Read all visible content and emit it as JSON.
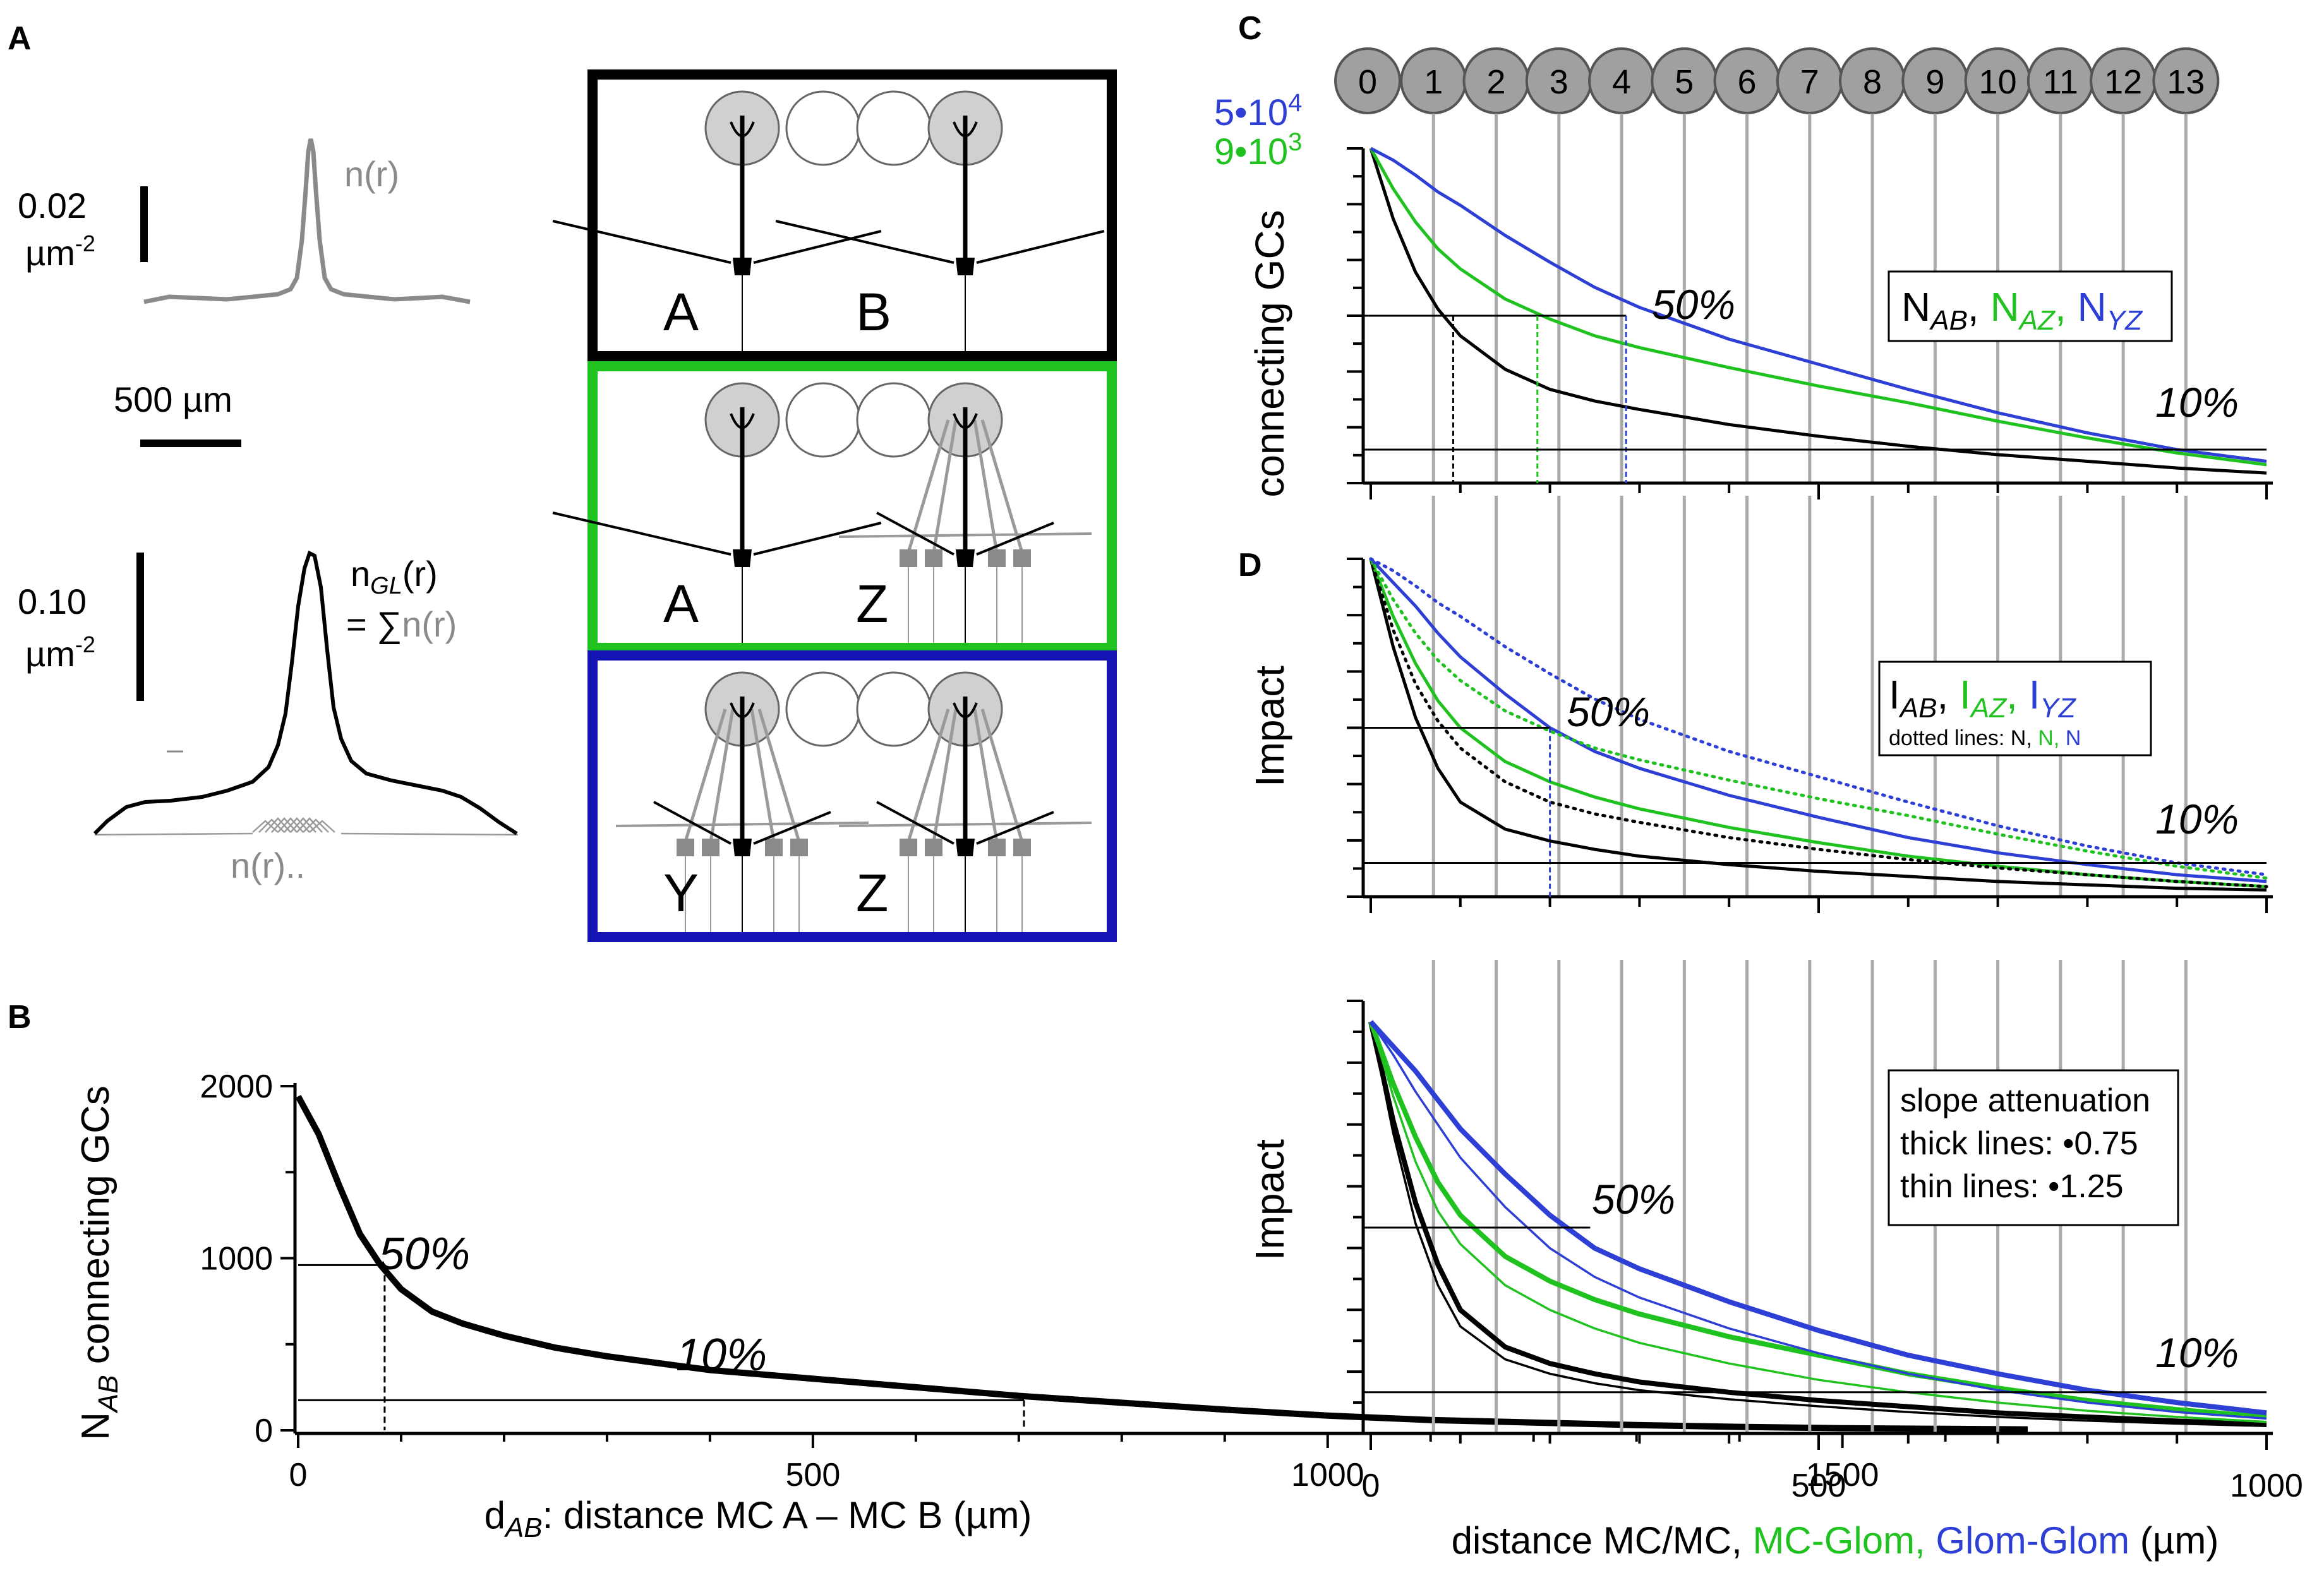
{
  "panel_labels": {
    "A": "A",
    "B": "B",
    "C": "C",
    "D": "D"
  },
  "colors": {
    "black": "#000000",
    "green": "#1fc21f",
    "blue": "#2e3fd6",
    "gray": "#8a8a8a",
    "grid": "#aaaaaa"
  },
  "panelA": {
    "top_scale_value": "0.02",
    "top_scale_unit": "µm",
    "top_scale_exp": "-2",
    "top_curve_label": "n(r)",
    "length_scale": "500 µm",
    "bottom_scale_value": "0.10",
    "bottom_scale_unit": "µm",
    "bottom_scale_exp": "-2",
    "ngl_n": "n",
    "ngl_sub": "GL",
    "ngl_r": "(r)",
    "ngl_eq": "= ∑",
    "ngl_sum": "n(r)",
    "bottom_curve_label": "n(r)..",
    "schematic": [
      {
        "left_label": "A",
        "right_label": "B",
        "frame_color": "#000000"
      },
      {
        "left_label": "A",
        "right_label": "Z",
        "frame_color": "#1fc21f"
      },
      {
        "left_label": "Y",
        "right_label": "Z",
        "frame_color": "#1414b4"
      }
    ]
  },
  "chart_data": [
    {
      "id": "B",
      "type": "line",
      "title": "",
      "xlabel_prefix": "d",
      "xlabel_sub": "AB",
      "xlabel_rest": ": distance MC A – MC B (µm)",
      "ylabel_prefix": "N",
      "ylabel_sub": "AB",
      "ylabel_rest": " connecting GCs",
      "xlim": [
        0,
        1680
      ],
      "ylim": [
        0,
        2000
      ],
      "xticks": [
        0,
        500,
        1000,
        1500
      ],
      "yticks": [
        0,
        1000,
        2000
      ],
      "x": [
        0,
        20,
        40,
        60,
        80,
        100,
        130,
        160,
        200,
        250,
        300,
        400,
        500,
        600,
        700,
        800,
        900,
        1000,
        1100,
        1200,
        1300,
        1400,
        1500,
        1600,
        1680
      ],
      "series": [
        {
          "name": "N_AB",
          "color": "#000000",
          "values": [
            1940,
            1720,
            1420,
            1140,
            960,
            820,
            690,
            620,
            550,
            480,
            430,
            350,
            300,
            250,
            200,
            160,
            120,
            85,
            60,
            45,
            30,
            20,
            12,
            8,
            5
          ]
        }
      ],
      "ref_50": {
        "y": 960,
        "x": 84
      },
      "ref_10": {
        "y": 175,
        "x": 705
      },
      "annotations": [
        "50%",
        "10%"
      ]
    },
    {
      "id": "C",
      "type": "line",
      "ylabel": "connecting GCs",
      "xlim": [
        0,
        1000
      ],
      "ylim": [
        0,
        1
      ],
      "x": [
        0,
        25,
        50,
        75,
        100,
        150,
        200,
        250,
        300,
        400,
        500,
        600,
        700,
        800,
        900,
        1000
      ],
      "series": [
        {
          "name": "N_AB",
          "color": "#000000",
          "values": [
            1.0,
            0.79,
            0.63,
            0.52,
            0.44,
            0.34,
            0.28,
            0.245,
            0.22,
            0.175,
            0.14,
            0.11,
            0.085,
            0.065,
            0.045,
            0.03
          ]
        },
        {
          "name": "N_AZ",
          "color": "#1fc21f",
          "values": [
            1.0,
            0.88,
            0.78,
            0.7,
            0.64,
            0.55,
            0.49,
            0.44,
            0.405,
            0.345,
            0.29,
            0.24,
            0.185,
            0.135,
            0.09,
            0.055
          ]
        },
        {
          "name": "N_YZ",
          "color": "#2e3fd6",
          "values": [
            1.0,
            0.965,
            0.92,
            0.87,
            0.83,
            0.74,
            0.66,
            0.585,
            0.525,
            0.43,
            0.355,
            0.28,
            0.21,
            0.15,
            0.1,
            0.065
          ]
        }
      ],
      "ref_50": {
        "y": 0.5,
        "x_black": 92,
        "x_green": 186,
        "x_blue": 285
      },
      "ref_10": {
        "y": 0.1
      },
      "scale_labels": [
        {
          "text": "5•10",
          "exp": "4",
          "color": "#2e3fd6"
        },
        {
          "text": "9•10",
          "exp": "3",
          "color": "#1fc21f"
        }
      ],
      "annotations": [
        "50%",
        "10%"
      ],
      "legend": [
        {
          "main": "N",
          "sub": "AB",
          "sep": ",",
          "color": "#000000"
        },
        {
          "main": "N",
          "sub": "AZ",
          "sep": ",",
          "color": "#1fc21f"
        },
        {
          "main": "N",
          "sub": "YZ",
          "sep": "",
          "color": "#2e3fd6"
        }
      ],
      "glomerulus_indices": [
        "0",
        "1",
        "2",
        "3",
        "4",
        "5",
        "6",
        "7",
        "8",
        "9",
        "10",
        "11",
        "12",
        "13"
      ],
      "glomerulus_x": [
        0,
        70,
        140,
        210,
        280,
        350,
        420,
        490,
        560,
        630,
        700,
        770,
        840,
        910
      ]
    },
    {
      "id": "D",
      "type": "line",
      "ylabel": "Impact",
      "xlim": [
        0,
        1000
      ],
      "ylim": [
        0,
        1
      ],
      "x": [
        0,
        25,
        50,
        75,
        100,
        150,
        200,
        250,
        300,
        400,
        500,
        600,
        700,
        800,
        900,
        1000
      ],
      "series": [
        {
          "name": "I_AB",
          "color": "#000000",
          "style": "solid",
          "values": [
            1.0,
            0.74,
            0.53,
            0.38,
            0.28,
            0.2,
            0.165,
            0.14,
            0.12,
            0.095,
            0.075,
            0.06,
            0.045,
            0.035,
            0.025,
            0.02
          ]
        },
        {
          "name": "I_AZ",
          "color": "#1fc21f",
          "style": "solid",
          "values": [
            1.0,
            0.83,
            0.69,
            0.58,
            0.5,
            0.4,
            0.34,
            0.295,
            0.26,
            0.205,
            0.16,
            0.12,
            0.09,
            0.065,
            0.045,
            0.03
          ]
        },
        {
          "name": "I_YZ",
          "color": "#2e3fd6",
          "style": "solid",
          "values": [
            1.0,
            0.93,
            0.86,
            0.78,
            0.71,
            0.6,
            0.5,
            0.43,
            0.38,
            0.3,
            0.235,
            0.175,
            0.13,
            0.095,
            0.065,
            0.045
          ]
        },
        {
          "name": "N_AB",
          "color": "#000000",
          "style": "dotted",
          "values": [
            1.0,
            0.79,
            0.63,
            0.52,
            0.44,
            0.34,
            0.28,
            0.245,
            0.22,
            0.175,
            0.14,
            0.11,
            0.085,
            0.065,
            0.045,
            0.03
          ]
        },
        {
          "name": "N_AZ",
          "color": "#1fc21f",
          "style": "dotted",
          "values": [
            1.0,
            0.88,
            0.78,
            0.7,
            0.64,
            0.55,
            0.49,
            0.44,
            0.405,
            0.345,
            0.29,
            0.24,
            0.185,
            0.135,
            0.09,
            0.055
          ]
        },
        {
          "name": "N_YZ",
          "color": "#2e3fd6",
          "style": "dotted",
          "values": [
            1.0,
            0.965,
            0.92,
            0.87,
            0.83,
            0.74,
            0.66,
            0.585,
            0.525,
            0.43,
            0.355,
            0.28,
            0.21,
            0.15,
            0.1,
            0.065
          ]
        }
      ],
      "ref_50": {
        "y": 0.5,
        "x_blue": 200
      },
      "ref_10": {
        "y": 0.1
      },
      "annotations": [
        "50%",
        "10%"
      ],
      "legend": [
        {
          "main": "I",
          "sub": "AB",
          "sep": ",",
          "color": "#000000"
        },
        {
          "main": "I",
          "sub": "AZ",
          "sep": ",",
          "color": "#1fc21f"
        },
        {
          "main": "I",
          "sub": "YZ",
          "sep": "",
          "color": "#2e3fd6"
        }
      ],
      "legend_note": "dotted lines:",
      "legend_note_items": [
        {
          "text": "N,",
          "color": "#000000"
        },
        {
          "text": "N,",
          "color": "#1fc21f"
        },
        {
          "text": "N",
          "color": "#2e3fd6"
        }
      ]
    },
    {
      "id": "E",
      "type": "line",
      "ylabel": "Impact",
      "xlim": [
        0,
        1000
      ],
      "ylim": [
        0,
        1
      ],
      "xticks": [
        0,
        500,
        1000
      ],
      "x": [
        0,
        25,
        50,
        75,
        100,
        150,
        200,
        250,
        300,
        400,
        500,
        600,
        700,
        800,
        900,
        1000
      ],
      "series": [
        {
          "name": "AB thick",
          "color": "#000000",
          "width": "thick",
          "values": [
            1.0,
            0.76,
            0.56,
            0.41,
            0.3,
            0.21,
            0.17,
            0.145,
            0.125,
            0.1,
            0.08,
            0.065,
            0.05,
            0.04,
            0.03,
            0.022
          ]
        },
        {
          "name": "AB thin",
          "color": "#000000",
          "width": "thin",
          "values": [
            1.0,
            0.73,
            0.51,
            0.36,
            0.26,
            0.18,
            0.145,
            0.122,
            0.105,
            0.083,
            0.066,
            0.052,
            0.04,
            0.031,
            0.024,
            0.018
          ]
        },
        {
          "name": "AZ thick",
          "color": "#1fc21f",
          "width": "thick",
          "values": [
            1.0,
            0.85,
            0.72,
            0.61,
            0.53,
            0.43,
            0.37,
            0.325,
            0.29,
            0.235,
            0.19,
            0.145,
            0.11,
            0.08,
            0.058,
            0.04
          ]
        },
        {
          "name": "AZ thin",
          "color": "#1fc21f",
          "width": "thin",
          "values": [
            1.0,
            0.82,
            0.66,
            0.54,
            0.46,
            0.36,
            0.3,
            0.255,
            0.22,
            0.17,
            0.13,
            0.1,
            0.075,
            0.055,
            0.04,
            0.028
          ]
        },
        {
          "name": "YZ thick",
          "color": "#2e3fd6",
          "width": "thick",
          "values": [
            1.0,
            0.94,
            0.88,
            0.81,
            0.74,
            0.63,
            0.53,
            0.45,
            0.4,
            0.32,
            0.25,
            0.19,
            0.145,
            0.105,
            0.075,
            0.05
          ]
        },
        {
          "name": "YZ thin",
          "color": "#2e3fd6",
          "width": "thin",
          "values": [
            1.0,
            0.92,
            0.83,
            0.75,
            0.67,
            0.55,
            0.45,
            0.38,
            0.33,
            0.255,
            0.195,
            0.145,
            0.105,
            0.075,
            0.052,
            0.036
          ]
        }
      ],
      "ref_50": {
        "y": 0.5
      },
      "ref_10": {
        "y": 0.1
      },
      "annotations": [
        "50%",
        "10%"
      ],
      "legend": [
        "slope attenuation",
        "thick lines: •0.75",
        "thin lines: •1.25"
      ],
      "xlabel_parts": [
        {
          "text": "distance MC/MC,",
          "color": "#000000"
        },
        {
          "text": " MC-Glom,",
          "color": "#1fc21f"
        },
        {
          "text": " Glom-Glom",
          "color": "#2e3fd6"
        },
        {
          "text": " (µm)",
          "color": "#000000"
        }
      ]
    }
  ]
}
